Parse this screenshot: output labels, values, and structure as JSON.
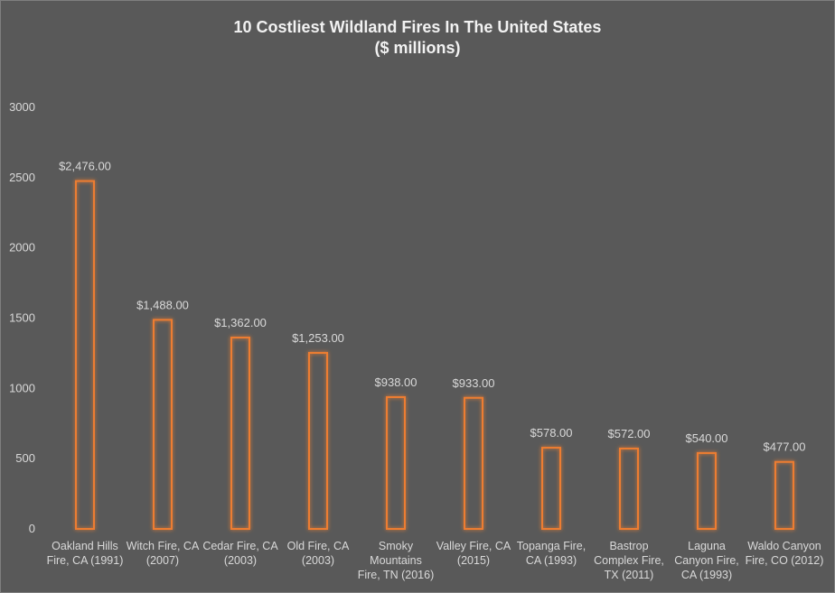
{
  "chart_data": {
    "type": "bar",
    "title": "10 Costliest Wildland Fires In The United States",
    "subtitle": "($ millions)",
    "categories": [
      [
        "Oakland Hills",
        "Fire, CA (1991)"
      ],
      [
        "Witch Fire, CA",
        "(2007)"
      ],
      [
        "Cedar Fire, CA",
        "(2003)"
      ],
      [
        "Old Fire, CA",
        "(2003)"
      ],
      [
        "Smoky",
        "Mountains",
        "Fire, TN (2016)"
      ],
      [
        "Valley Fire, CA",
        "(2015)"
      ],
      [
        "Topanga Fire,",
        "CA (1993)"
      ],
      [
        "Bastrop",
        "Complex Fire,",
        "TX (2011)"
      ],
      [
        "Laguna",
        "Canyon Fire,",
        "CA (1993)"
      ],
      [
        "Waldo Canyon",
        "Fire, CO (2012)"
      ]
    ],
    "values": [
      2476,
      1488,
      1362,
      1253,
      938,
      933,
      578,
      572,
      540,
      477
    ],
    "data_labels": [
      "$2,476.00",
      "$1,488.00",
      "$1,362.00",
      "$1,253.00",
      "$938.00",
      "$933.00",
      "$578.00",
      "$572.00",
      "$540.00",
      "$477.00"
    ],
    "ylim": [
      0,
      3000
    ],
    "yticks": [
      0,
      500,
      1000,
      1500,
      2000,
      2500,
      3000
    ],
    "grid": false,
    "legend": "none",
    "colors": {
      "background": "#595959",
      "bar_outline": "#ed7d31",
      "text": "#d9d9d9"
    }
  }
}
